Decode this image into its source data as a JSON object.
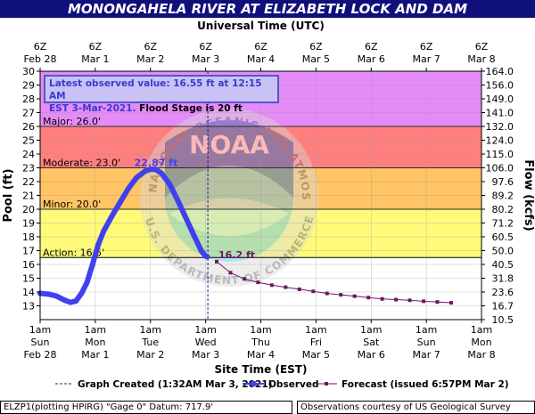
{
  "title": "MONONGAHELA RIVER AT ELIZABETH LOCK AND DAM",
  "top_axis_title": "Universal Time (UTC)",
  "bottom_axis_title": "Site Time (EST)",
  "latest_box": {
    "line1": "Latest observed value: 16.55 ft at 12:15 AM",
    "line2_blue": "EST 3-Mar-2021.",
    "line2_black": " Flood Stage is 20 ft"
  },
  "legend": {
    "graph_created": "Graph Created (1:32AM Mar 3, 2021)",
    "observed": "Observed",
    "forecast": "Forecast (issued 6:57PM Mar 2)"
  },
  "footer": {
    "left": "ELZP1(plotting HPIRG) \"Gage 0\" Datum: 717.9'",
    "right": "Observations courtesy of US Geological Survey"
  },
  "chart_data": {
    "type": "line",
    "title": "MONONGAHELA RIVER AT ELIZABETH LOCK AND DAM",
    "ylabel": "Pool (ft)",
    "y2label": "Flow (kcfs)",
    "ylim": [
      12,
      30
    ],
    "xlim": [
      0,
      8
    ],
    "x_unit": "days since Sun Feb 28 1am EST",
    "top_ticks": [
      {
        "l1": "6Z",
        "l2": "Feb 28"
      },
      {
        "l1": "6Z",
        "l2": "Mar 1"
      },
      {
        "l1": "6Z",
        "l2": "Mar 2"
      },
      {
        "l1": "6Z",
        "l2": "Mar 3"
      },
      {
        "l1": "6Z",
        "l2": "Mar 4"
      },
      {
        "l1": "6Z",
        "l2": "Mar 5"
      },
      {
        "l1": "6Z",
        "l2": "Mar 6"
      },
      {
        "l1": "6Z",
        "l2": "Mar 7"
      },
      {
        "l1": "6Z",
        "l2": "Mar 8"
      }
    ],
    "bottom_ticks": [
      {
        "l1": "1am",
        "l2": "Sun",
        "l3": "Feb 28"
      },
      {
        "l1": "1am",
        "l2": "Mon",
        "l3": "Mar 1"
      },
      {
        "l1": "1am",
        "l2": "Tue",
        "l3": "Mar 2"
      },
      {
        "l1": "1am",
        "l2": "Wed",
        "l3": "Mar 3"
      },
      {
        "l1": "1am",
        "l2": "Thu",
        "l3": "Mar 4"
      },
      {
        "l1": "1am",
        "l2": "Fri",
        "l3": "Mar 5"
      },
      {
        "l1": "1am",
        "l2": "Sat",
        "l3": "Mar 6"
      },
      {
        "l1": "1am",
        "l2": "Sun",
        "l3": "Mar 7"
      },
      {
        "l1": "1am",
        "l2": "Mon",
        "l3": "Mar 8"
      }
    ],
    "y_ticks": [
      13,
      14,
      15,
      16,
      17,
      18,
      19,
      20,
      21,
      22,
      23,
      24,
      25,
      26,
      27,
      28,
      29,
      30
    ],
    "flow_ticks": [
      {
        "stage": 12,
        "label": "10.5"
      },
      {
        "stage": 13,
        "label": "16.7"
      },
      {
        "stage": 14,
        "label": "23.6"
      },
      {
        "stage": 15,
        "label": "31.8"
      },
      {
        "stage": 16,
        "label": "40.5"
      },
      {
        "stage": 17,
        "label": "50.0"
      },
      {
        "stage": 18,
        "label": "60.5"
      },
      {
        "stage": 19,
        "label": "71.2"
      },
      {
        "stage": 20,
        "label": "80.2"
      },
      {
        "stage": 21,
        "label": "89.2"
      },
      {
        "stage": 22,
        "label": "97.6"
      },
      {
        "stage": 23,
        "label": "106.0"
      },
      {
        "stage": 24,
        "label": "115.0"
      },
      {
        "stage": 25,
        "label": "124.0"
      },
      {
        "stage": 26,
        "label": "132.0"
      },
      {
        "stage": 27,
        "label": "141.0"
      },
      {
        "stage": 28,
        "label": "149.0"
      },
      {
        "stage": 29,
        "label": "156.0"
      },
      {
        "stage": 30,
        "label": "164.0"
      }
    ],
    "stage_bands": [
      {
        "name": "Action",
        "label": "Action: 16.5'",
        "from": 16.5,
        "to": 20,
        "color": "#fffa7a"
      },
      {
        "name": "Minor",
        "label": "Minor: 20.0'",
        "from": 20,
        "to": 23,
        "color": "#ffc463"
      },
      {
        "name": "Moderate",
        "label": "Moderate: 23.0'",
        "from": 23,
        "to": 26,
        "color": "#ff7f7f"
      },
      {
        "name": "Major",
        "label": "Major: 26.0'",
        "from": 26,
        "to": 30,
        "color": "#e58bf7"
      }
    ],
    "observed": {
      "name": "Observed",
      "color": "#4040ee",
      "points": [
        [
          0,
          13.9
        ],
        [
          0.15,
          13.85
        ],
        [
          0.3,
          13.7
        ],
        [
          0.45,
          13.4
        ],
        [
          0.55,
          13.25
        ],
        [
          0.65,
          13.35
        ],
        [
          0.75,
          13.9
        ],
        [
          0.85,
          14.7
        ],
        [
          0.95,
          16.0
        ],
        [
          1.05,
          17.4
        ],
        [
          1.15,
          18.4
        ],
        [
          1.3,
          19.5
        ],
        [
          1.45,
          20.5
        ],
        [
          1.6,
          21.5
        ],
        [
          1.75,
          22.3
        ],
        [
          1.9,
          22.75
        ],
        [
          2.0,
          22.9
        ],
        [
          2.1,
          22.87
        ],
        [
          2.2,
          22.6
        ],
        [
          2.35,
          21.8
        ],
        [
          2.5,
          20.6
        ],
        [
          2.65,
          19.3
        ],
        [
          2.8,
          18.0
        ],
        [
          2.92,
          17.0
        ],
        [
          3.0,
          16.6
        ],
        [
          3.03,
          16.55
        ]
      ],
      "peak": {
        "x": 2.1,
        "y": 22.87,
        "label": "22.87 ft"
      }
    },
    "forecast": {
      "name": "Forecast (issued 6:57PM Mar 2)",
      "color": "#6e1760",
      "points": [
        [
          3.2,
          16.2
        ],
        [
          3.45,
          15.4
        ],
        [
          3.7,
          14.95
        ],
        [
          3.95,
          14.7
        ],
        [
          4.2,
          14.5
        ],
        [
          4.45,
          14.35
        ],
        [
          4.7,
          14.2
        ],
        [
          4.95,
          14.05
        ],
        [
          5.2,
          13.9
        ],
        [
          5.45,
          13.8
        ],
        [
          5.7,
          13.7
        ],
        [
          5.95,
          13.6
        ],
        [
          6.2,
          13.5
        ],
        [
          6.45,
          13.45
        ],
        [
          6.7,
          13.4
        ],
        [
          6.95,
          13.33
        ],
        [
          7.2,
          13.28
        ],
        [
          7.45,
          13.22
        ]
      ],
      "first_label": "16.2 ft"
    },
    "graph_created_x": 3.04,
    "watermark": {
      "ring_text": "NATIONAL OCEANIC AND ATMOSPHERIC ADMINISTRATION",
      "bottom_text": "U.S. DEPARTMENT OF COMMERCE",
      "center": "NOAA"
    }
  }
}
